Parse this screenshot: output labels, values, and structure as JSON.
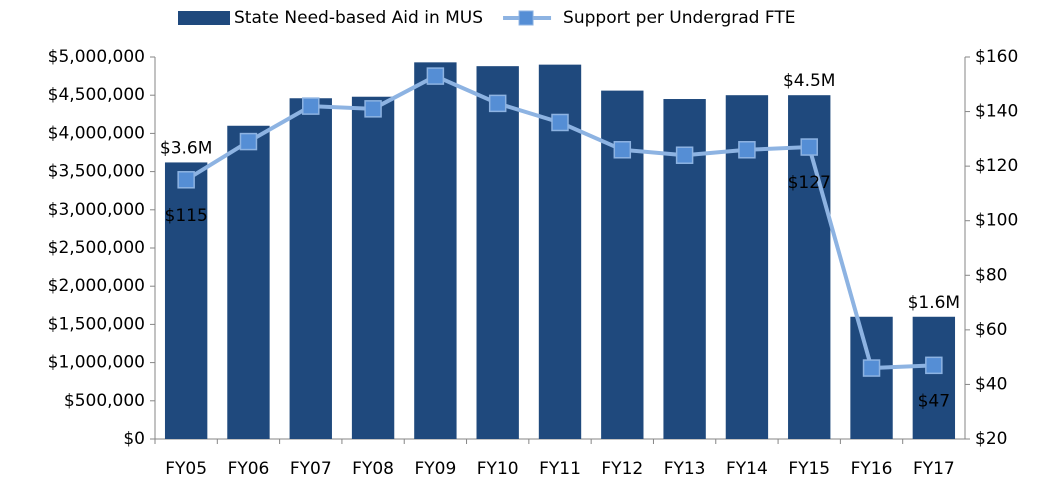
{
  "chart_data": {
    "type": "bar-line",
    "categories": [
      "FY05",
      "FY06",
      "FY07",
      "FY08",
      "FY09",
      "FY10",
      "FY11",
      "FY12",
      "FY13",
      "FY14",
      "FY15",
      "FY16",
      "FY17"
    ],
    "series": [
      {
        "name": "State Need-based Aid in MUS",
        "type": "bar",
        "color": "#1f497d",
        "values": [
          3620000,
          4100000,
          4460000,
          4480000,
          4930000,
          4880000,
          4900000,
          4560000,
          4450000,
          4500000,
          4500000,
          1600000,
          1600000
        ],
        "value_labels": [
          "$3.6M",
          null,
          null,
          null,
          null,
          null,
          null,
          null,
          null,
          null,
          "$4.5M",
          null,
          "$1.6M"
        ]
      },
      {
        "name": "Support per Undergrad FTE",
        "type": "line",
        "axis": "y2",
        "color": "#8db3e2",
        "marker_color": "#558ed5",
        "values": [
          115,
          129,
          142,
          141,
          153,
          143,
          136,
          126,
          124,
          126,
          127,
          46,
          47
        ],
        "value_labels": [
          "$115",
          null,
          null,
          null,
          null,
          null,
          null,
          null,
          null,
          null,
          "$127",
          null,
          "$47"
        ]
      }
    ],
    "ylim": [
      0,
      5000000
    ],
    "yticks": [
      {
        "value": 0,
        "label": "$0"
      },
      {
        "value": 500000,
        "label": "$500,000"
      },
      {
        "value": 1000000,
        "label": "$1,000,000"
      },
      {
        "value": 1500000,
        "label": "$1,500,000"
      },
      {
        "value": 2000000,
        "label": "$2,000,000"
      },
      {
        "value": 2500000,
        "label": "$2,500,000"
      },
      {
        "value": 3000000,
        "label": "$3,000,000"
      },
      {
        "value": 3500000,
        "label": "$3,500,000"
      },
      {
        "value": 4000000,
        "label": "$4,000,000"
      },
      {
        "value": 4500000,
        "label": "$4,500,000"
      },
      {
        "value": 5000000,
        "label": "$5,000,000"
      }
    ],
    "y2lim": [
      20,
      160
    ],
    "y2ticks": [
      {
        "value": 20,
        "label": "$20"
      },
      {
        "value": 40,
        "label": "$40"
      },
      {
        "value": 60,
        "label": "$60"
      },
      {
        "value": 80,
        "label": "$80"
      },
      {
        "value": 100,
        "label": "$100"
      },
      {
        "value": 120,
        "label": "$120"
      },
      {
        "value": 140,
        "label": "$140"
      },
      {
        "value": 160,
        "label": "$160"
      }
    ],
    "legend": "top"
  }
}
